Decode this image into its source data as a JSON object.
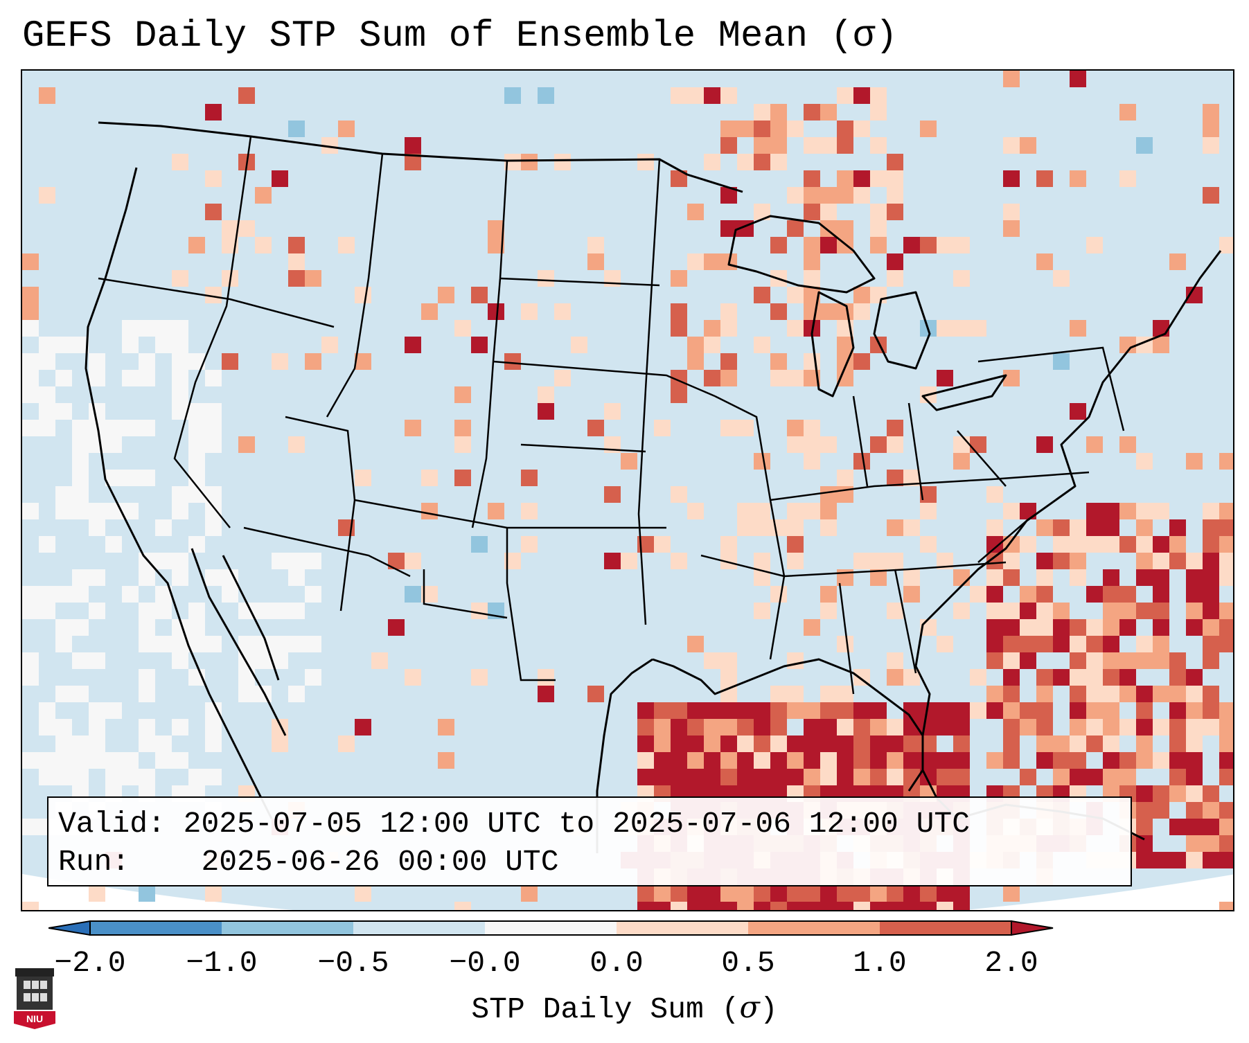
{
  "title": "GEFS Daily STP Sum of Ensemble Mean (σ)",
  "info": {
    "valid_label": "Valid:",
    "valid_value": "2025-07-05 12:00 UTC to 2025-07-06 12:00 UTC",
    "run_label": "Run:",
    "run_value": "2025-06-26 00:00 UTC"
  },
  "colorbar": {
    "label_text": "STP Daily Sum (",
    "label_symbol": "σ",
    "label_close": ")",
    "ticks": [
      "−2.0",
      "−1.0",
      "−0.5",
      "−0.0",
      "0.0",
      "0.5",
      "1.0",
      "2.0"
    ],
    "colors": [
      "#2a6fb8",
      "#4a90c8",
      "#92c5de",
      "#d1e5f0",
      "#f7f7f7",
      "#fddbc7",
      "#f4a582",
      "#d6604d",
      "#b2182b"
    ]
  },
  "logo": {
    "text": "NIU"
  },
  "colors": {
    "ocean_land_base": "#d1e5f0",
    "near_zero": "#f7f7f7",
    "light_positive": "#fddbc7",
    "medium_positive": "#f4a582",
    "strong_positive": "#d6604d",
    "max_positive": "#b2182b",
    "light_negative": "#92c5de"
  }
}
